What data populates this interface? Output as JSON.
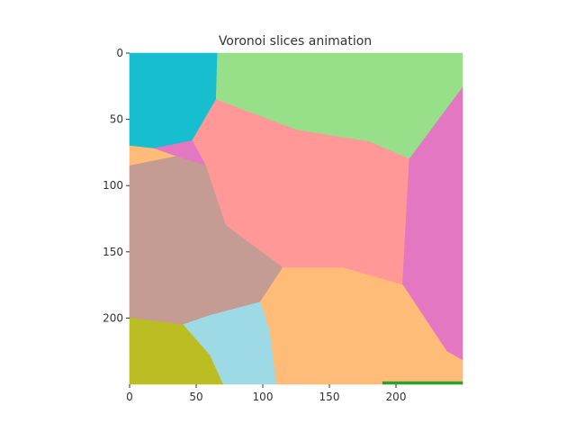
{
  "chart_data": {
    "type": "heatmap",
    "title": "Voronoi slices animation",
    "xlabel": "",
    "ylabel": "",
    "xlim": [
      0,
      250
    ],
    "ylim": [
      250,
      0
    ],
    "x_ticks": [
      0,
      50,
      100,
      150,
      200
    ],
    "y_ticks": [
      0,
      50,
      100,
      150,
      200
    ],
    "grid": false,
    "regions": [
      {
        "color": "#17becf",
        "polygon": [
          [
            0,
            0
          ],
          [
            66,
            0
          ],
          [
            65,
            35
          ],
          [
            47,
            66
          ],
          [
            18,
            72
          ],
          [
            0,
            70
          ]
        ]
      },
      {
        "color": "#98df8a",
        "polygon": [
          [
            66,
            0
          ],
          [
            250,
            0
          ],
          [
            250,
            26
          ],
          [
            210,
            80
          ],
          [
            180,
            67
          ],
          [
            125,
            58
          ],
          [
            66,
            35
          ],
          [
            65,
            35
          ]
        ]
      },
      {
        "color": "#ff9896",
        "polygon": [
          [
            65,
            35
          ],
          [
            125,
            58
          ],
          [
            180,
            67
          ],
          [
            210,
            80
          ],
          [
            205,
            175
          ],
          [
            160,
            162
          ],
          [
            115,
            162
          ],
          [
            72,
            130
          ],
          [
            57,
            85
          ],
          [
            47,
            66
          ]
        ]
      },
      {
        "color": "#e377c2",
        "polygon": [
          [
            250,
            26
          ],
          [
            250,
            232
          ],
          [
            238,
            225
          ],
          [
            205,
            175
          ],
          [
            210,
            80
          ]
        ]
      },
      {
        "color": "#e377c2",
        "polygon": [
          [
            18,
            72
          ],
          [
            47,
            66
          ],
          [
            57,
            85
          ],
          [
            35,
            78
          ]
        ]
      },
      {
        "color": "#ffbb78",
        "polygon": [
          [
            0,
            70
          ],
          [
            18,
            72
          ],
          [
            35,
            78
          ],
          [
            0,
            85
          ]
        ]
      },
      {
        "color": "#c49c94",
        "polygon": [
          [
            0,
            85
          ],
          [
            35,
            78
          ],
          [
            57,
            85
          ],
          [
            72,
            130
          ],
          [
            115,
            162
          ],
          [
            98,
            188
          ],
          [
            60,
            198
          ],
          [
            40,
            205
          ],
          [
            0,
            200
          ]
        ]
      },
      {
        "color": "#ffbb78",
        "polygon": [
          [
            115,
            162
          ],
          [
            160,
            162
          ],
          [
            205,
            175
          ],
          [
            238,
            225
          ],
          [
            250,
            232
          ],
          [
            250,
            250
          ],
          [
            110,
            250
          ],
          [
            105,
            210
          ],
          [
            98,
            188
          ]
        ]
      },
      {
        "color": "#9edae5",
        "polygon": [
          [
            40,
            205
          ],
          [
            60,
            198
          ],
          [
            98,
            188
          ],
          [
            105,
            210
          ],
          [
            110,
            250
          ],
          [
            70,
            250
          ],
          [
            60,
            228
          ]
        ]
      },
      {
        "color": "#bcbd22",
        "polygon": [
          [
            0,
            200
          ],
          [
            40,
            205
          ],
          [
            60,
            228
          ],
          [
            70,
            250
          ],
          [
            0,
            250
          ]
        ]
      },
      {
        "color": "#2ca02c",
        "polygon": [
          [
            190,
            248
          ],
          [
            250,
            248
          ],
          [
            250,
            250
          ],
          [
            190,
            250
          ]
        ]
      }
    ]
  }
}
